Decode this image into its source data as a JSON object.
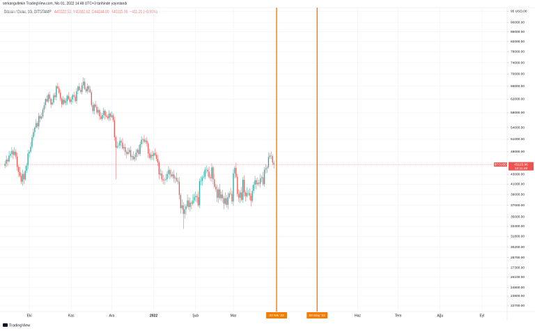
{
  "header": {
    "published": "serkangultekin TradingView.com, Nis 01, 2022 14:48 UTC+3 tarihinde yayınlandı",
    "symbol": "Bitcoin / Dolar, 1G, BITSTAMP",
    "open": "A45522.53",
    "high": "Y45982.62",
    "low": "D44244.00",
    "close": "K45115.96",
    "change": "−411.31 (−0.90%)"
  },
  "footer": {
    "logo": "TradingView"
  },
  "chart_data": {
    "type": "candlestick",
    "name": "BTCUSD",
    "countdown": "12:11:49",
    "up_color": "#26a69a",
    "down_color": "#ef5350",
    "log_scale": true,
    "grid": true,
    "xlim": [
      -3.7,
      371.6
    ],
    "xticks": [
      {
        "value": 18,
        "label": "Eki"
      },
      {
        "value": 49,
        "label": "Kas"
      },
      {
        "value": 79,
        "label": "Ara"
      },
      {
        "value": 110,
        "label": "2022"
      },
      {
        "value": 141,
        "label": "Şub"
      },
      {
        "value": 169,
        "label": "Mar"
      },
      {
        "value": 261,
        "label": "Haz"
      },
      {
        "value": 291,
        "label": "Tem"
      },
      {
        "value": 322,
        "label": "Ağu"
      },
      {
        "value": 353,
        "label": "Eyl"
      }
    ],
    "vlines": [
      {
        "value": 201,
        "label": "02 Nis '22"
      },
      {
        "value": 231,
        "label": "02 May '22"
      }
    ],
    "vline_color": "#f57c00",
    "ylim": [
      22090,
      96700
    ],
    "yticks": [
      {
        "value": 95000,
        "label": "95 USD.00"
      },
      {
        "value": 90000,
        "label": "90000.00"
      },
      {
        "value": 86000,
        "label": "86000.00"
      },
      {
        "value": 82000,
        "label": "82000.00"
      },
      {
        "value": 78000,
        "label": "78000.00"
      },
      {
        "value": 74000,
        "label": "74000.00"
      },
      {
        "value": 70000,
        "label": "70000.00"
      },
      {
        "value": 66000,
        "label": "66000.00"
      },
      {
        "value": 62000,
        "label": "62000.00"
      },
      {
        "value": 58000,
        "label": "58000.00"
      },
      {
        "value": 54000,
        "label": "54000.00"
      },
      {
        "value": 51000,
        "label": "51000.00"
      },
      {
        "value": 48000,
        "label": "48000.00"
      },
      {
        "value": 43000,
        "label": "43000.00"
      },
      {
        "value": 41000,
        "label": "41000.00"
      },
      {
        "value": 39000,
        "label": "39000.00"
      },
      {
        "value": 37000,
        "label": "37000.00"
      },
      {
        "value": 35000,
        "label": "35000.00"
      },
      {
        "value": 33400,
        "label": "33400.00"
      },
      {
        "value": 31800,
        "label": "31800.00"
      },
      {
        "value": 30200,
        "label": "30200.00"
      },
      {
        "value": 28700,
        "label": "28700.00"
      },
      {
        "value": 27300,
        "label": "27300.00"
      },
      {
        "value": 26100,
        "label": "26100.00"
      },
      {
        "value": 24800,
        "label": "24800.00"
      },
      {
        "value": 23800,
        "label": "23800.00"
      },
      {
        "value": 22700,
        "label": "22700.00"
      }
    ],
    "ohlc": [
      [
        44800,
        45900,
        44300,
        45300
      ],
      [
        45300,
        47100,
        44500,
        46200
      ],
      [
        46200,
        46600,
        44800,
        45800
      ],
      [
        45800,
        48200,
        45500,
        47100
      ],
      [
        47100,
        48100,
        46600,
        47500
      ],
      [
        47500,
        49100,
        46700,
        48200
      ],
      [
        48200,
        48600,
        46300,
        47300
      ],
      [
        47300,
        49100,
        47000,
        48000
      ],
      [
        48000,
        48600,
        46400,
        46900
      ],
      [
        46900,
        47800,
        43800,
        44600
      ],
      [
        44600,
        45000,
        42500,
        43500
      ],
      [
        43500,
        44600,
        42400,
        42700
      ],
      [
        42700,
        43300,
        41000,
        41500
      ],
      [
        41500,
        44000,
        40700,
        43100
      ],
      [
        43100,
        43500,
        41000,
        42000
      ],
      [
        42000,
        44900,
        41700,
        43800
      ],
      [
        43800,
        45500,
        43300,
        44900
      ],
      [
        44900,
        48500,
        44100,
        47600
      ],
      [
        47600,
        48400,
        46600,
        48000
      ],
      [
        48000,
        50300,
        47700,
        49200
      ],
      [
        49200,
        52100,
        48700,
        51500
      ],
      [
        51500,
        53700,
        50700,
        52800
      ],
      [
        52800,
        54400,
        51800,
        54000
      ],
      [
        54000,
        56300,
        53700,
        55200
      ],
      [
        55200,
        55800,
        53800,
        54300
      ],
      [
        54300,
        58000,
        53500,
        57100
      ],
      [
        57100,
        57500,
        55400,
        56400
      ],
      [
        56400,
        58100,
        56100,
        57000
      ],
      [
        57000,
        59500,
        56500,
        58900
      ],
      [
        58900,
        61100,
        58100,
        60200
      ],
      [
        60200,
        62400,
        59200,
        62000
      ],
      [
        62000,
        63100,
        61000,
        61300
      ],
      [
        61300,
        64000,
        60800,
        63400
      ],
      [
        63400,
        64300,
        61300,
        62100
      ],
      [
        62100,
        62500,
        59400,
        60400
      ],
      [
        60400,
        62100,
        60100,
        61000
      ],
      [
        61000,
        63800,
        60500,
        63200
      ],
      [
        63200,
        64100,
        61800,
        62600
      ],
      [
        62600,
        66400,
        61600,
        66000
      ],
      [
        66000,
        67100,
        65100,
        65400
      ],
      [
        65400,
        66000,
        63500,
        64000
      ],
      [
        64000,
        64900,
        61400,
        62200
      ],
      [
        62200,
        62600,
        59500,
        60500
      ],
      [
        60500,
        62900,
        60200,
        61800
      ],
      [
        61800,
        62400,
        60400,
        60900
      ],
      [
        60900,
        62300,
        60100,
        61400
      ],
      [
        61400,
        63400,
        60400,
        63000
      ],
      [
        63000,
        64100,
        61700,
        62000
      ],
      [
        62000,
        62600,
        60700,
        61200
      ],
      [
        61200,
        62800,
        60400,
        61900
      ],
      [
        61900,
        63600,
        60900,
        63200
      ],
      [
        63200,
        64300,
        62500,
        62800
      ],
      [
        62800,
        63400,
        60900,
        61400
      ],
      [
        61400,
        65400,
        60600,
        64500
      ],
      [
        64500,
        66300,
        63500,
        65900
      ],
      [
        65900,
        67000,
        64500,
        64800
      ],
      [
        64800,
        65400,
        63700,
        64200
      ],
      [
        64200,
        67200,
        63400,
        66300
      ],
      [
        66300,
        68900,
        65300,
        67500
      ],
      [
        67500,
        68600,
        64800,
        65100
      ],
      [
        65100,
        65700,
        63900,
        64400
      ],
      [
        64400,
        66900,
        63600,
        66000
      ],
      [
        66000,
        66400,
        64000,
        65000
      ],
      [
        65000,
        66100,
        63800,
        64100
      ],
      [
        64100,
        64700,
        59700,
        60200
      ],
      [
        60200,
        61100,
        57700,
        58500
      ],
      [
        58500,
        60800,
        57500,
        60400
      ],
      [
        60400,
        61500,
        59400,
        59700
      ],
      [
        59700,
        60300,
        57600,
        58100
      ],
      [
        58100,
        59700,
        57300,
        58800
      ],
      [
        58800,
        59200,
        56000,
        57000
      ],
      [
        57000,
        58100,
        56000,
        56300
      ],
      [
        56300,
        58000,
        55800,
        57400
      ],
      [
        57400,
        59500,
        56600,
        58600
      ],
      [
        58600,
        59000,
        56200,
        57200
      ],
      [
        57200,
        58300,
        56700,
        57000
      ],
      [
        57000,
        57600,
        56000,
        56500
      ],
      [
        56500,
        58700,
        55700,
        57800
      ],
      [
        57800,
        58200,
        55900,
        56900
      ],
      [
        56900,
        58400,
        56600,
        57300
      ],
      [
        57300,
        57900,
        55500,
        56000
      ],
      [
        56000,
        56900,
        50700,
        51500
      ],
      [
        51500,
        51900,
        42000,
        49000
      ],
      [
        49000,
        50500,
        48700,
        49400
      ],
      [
        49400,
        50100,
        48900,
        49500
      ],
      [
        49500,
        51500,
        48700,
        50600
      ],
      [
        50600,
        51000,
        49200,
        50200
      ],
      [
        50200,
        51300,
        48500,
        48800
      ],
      [
        48800,
        49700,
        48300,
        49100
      ],
      [
        49100,
        50000,
        47200,
        48000
      ],
      [
        48000,
        48400,
        46500,
        47500
      ],
      [
        47500,
        49000,
        47200,
        47900
      ],
      [
        47900,
        49000,
        47400,
        48400
      ],
      [
        48400,
        49300,
        46000,
        46800
      ],
      [
        46800,
        47400,
        46000,
        47000
      ],
      [
        47000,
        48100,
        46000,
        46300
      ],
      [
        46300,
        47400,
        45800,
        46800
      ],
      [
        46800,
        48700,
        46000,
        47800
      ],
      [
        47800,
        48900,
        46800,
        48500
      ],
      [
        48500,
        49600,
        47200,
        47500
      ],
      [
        47500,
        50400,
        47000,
        49800
      ],
      [
        49800,
        51800,
        49000,
        50900
      ],
      [
        50900,
        51400,
        49900,
        51000
      ],
      [
        51000,
        52100,
        50100,
        50400
      ],
      [
        50400,
        51300,
        49900,
        50700
      ],
      [
        50700,
        51600,
        49200,
        50000
      ],
      [
        50000,
        50400,
        46600,
        47600
      ],
      [
        47600,
        48700,
        46300,
        46600
      ],
      [
        46600,
        47900,
        46100,
        47300
      ],
      [
        47300,
        48200,
        46200,
        47000
      ],
      [
        47000,
        48100,
        46000,
        47700
      ],
      [
        47700,
        48800,
        47000,
        47300
      ],
      [
        47300,
        47900,
        45900,
        46400
      ],
      [
        46400,
        47300,
        44800,
        45600
      ],
      [
        45600,
        46000,
        42000,
        43000
      ],
      [
        43000,
        44300,
        42700,
        43200
      ],
      [
        43200,
        43800,
        41500,
        42000
      ],
      [
        42000,
        42900,
        41000,
        41800
      ],
      [
        41800,
        42300,
        40900,
        41900
      ],
      [
        41900,
        43100,
        41600,
        42000
      ],
      [
        42000,
        43700,
        41500,
        43100
      ],
      [
        43100,
        44800,
        42300,
        43900
      ],
      [
        43900,
        44300,
        42000,
        43000
      ],
      [
        43000,
        44100,
        42300,
        42600
      ],
      [
        42600,
        43600,
        42100,
        43000
      ],
      [
        43000,
        43900,
        41400,
        42200
      ],
      [
        42200,
        42700,
        41200,
        42300
      ],
      [
        42300,
        43400,
        41400,
        41700
      ],
      [
        41700,
        42300,
        41000,
        41500
      ],
      [
        41500,
        42400,
        38100,
        38900
      ],
      [
        38900,
        39300,
        35500,
        36500
      ],
      [
        36500,
        38100,
        36200,
        37000
      ],
      [
        37000,
        37600,
        33000,
        35500
      ],
      [
        35500,
        37200,
        34700,
        36300
      ],
      [
        36300,
        37200,
        35300,
        36800
      ],
      [
        36800,
        39000,
        36500,
        37900
      ],
      [
        37900,
        38500,
        36200,
        36700
      ],
      [
        36700,
        38400,
        35900,
        37500
      ],
      [
        37500,
        37900,
        36300,
        37300
      ],
      [
        37300,
        39000,
        37000,
        37900
      ],
      [
        37900,
        39100,
        37400,
        38500
      ],
      [
        38500,
        39600,
        37700,
        38700
      ],
      [
        38700,
        39100,
        37500,
        38500
      ],
      [
        38500,
        39600,
        36700,
        37000
      ],
      [
        37000,
        42200,
        36500,
        41600
      ],
      [
        41600,
        42600,
        40800,
        41700
      ],
      [
        41700,
        42800,
        40700,
        42400
      ],
      [
        42400,
        43600,
        42100,
        42500
      ],
      [
        42500,
        44600,
        42000,
        44000
      ],
      [
        44000,
        44900,
        43200,
        44000
      ],
      [
        44000,
        44400,
        42600,
        43600
      ],
      [
        43600,
        44700,
        42100,
        42400
      ],
      [
        42400,
        43000,
        41700,
        42200
      ],
      [
        42200,
        45400,
        41400,
        44500
      ],
      [
        44500,
        44900,
        41000,
        42000
      ],
      [
        42000,
        43100,
        40200,
        40500
      ],
      [
        40500,
        41100,
        39500,
        40000
      ],
      [
        40000,
        40900,
        37600,
        38400
      ],
      [
        38400,
        40400,
        37400,
        40000
      ],
      [
        40000,
        41100,
        38000,
        38300
      ],
      [
        38300,
        39600,
        37800,
        39000
      ],
      [
        39000,
        39900,
        37500,
        38300
      ],
      [
        38300,
        38700,
        36300,
        37300
      ],
      [
        37300,
        39400,
        37000,
        38300
      ],
      [
        38300,
        38900,
        36600,
        37100
      ],
      [
        37100,
        39400,
        36300,
        38500
      ],
      [
        38500,
        39600,
        38200,
        39200
      ],
      [
        39200,
        40300,
        38800,
        39100
      ],
      [
        39100,
        39700,
        37200,
        37700
      ],
      [
        37700,
        44100,
        36900,
        43200
      ],
      [
        43200,
        44800,
        42200,
        44400
      ],
      [
        44400,
        45500,
        42200,
        42500
      ],
      [
        42500,
        43100,
        38600,
        39100
      ],
      [
        39100,
        40000,
        37600,
        38400
      ],
      [
        38400,
        39800,
        37400,
        39400
      ],
      [
        39400,
        40500,
        37700,
        38000
      ],
      [
        38000,
        42500,
        37500,
        41900
      ],
      [
        41900,
        42800,
        38600,
        39400
      ],
      [
        39400,
        39800,
        37700,
        38700
      ],
      [
        38700,
        40400,
        38400,
        39300
      ],
      [
        39300,
        39900,
        38800,
        39300
      ],
      [
        39300,
        40200,
        38000,
        38800
      ],
      [
        38800,
        39200,
        36800,
        37800
      ],
      [
        37800,
        40800,
        37500,
        39700
      ],
      [
        39700,
        41500,
        39200,
        40900
      ],
      [
        40900,
        42700,
        40100,
        41800
      ],
      [
        41800,
        42200,
        40000,
        41000
      ],
      [
        41000,
        42400,
        40700,
        41300
      ],
      [
        41300,
        41900,
        40600,
        41100
      ],
      [
        41100,
        43100,
        40300,
        42200
      ],
      [
        42200,
        42800,
        41400,
        42400
      ],
      [
        42400,
        43500,
        40700,
        41000
      ],
      [
        41000,
        44600,
        40500,
        44000
      ],
      [
        44000,
        45200,
        43200,
        44300
      ],
      [
        44300,
        44900,
        43300,
        44500
      ],
      [
        44500,
        47900,
        44200,
        46800
      ],
      [
        46800,
        47700,
        46300,
        47100
      ],
      [
        47100,
        48000,
        46300,
        47000
      ],
      [
        47000,
        47400,
        45000,
        45500
      ],
      [
        45522.53,
        45982.62,
        44244.0,
        45115.96
      ]
    ]
  }
}
